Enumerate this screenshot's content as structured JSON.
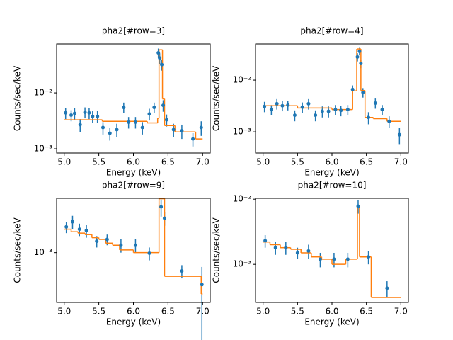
{
  "chart_data": [
    {
      "type": "errorbar",
      "title": "pha2[#row=3]",
      "x_label": "Energy (keV)",
      "y_label": "Counts/sec/keV",
      "log_y": true,
      "color": "#1f77b4",
      "model_color": "#ff7f0e",
      "xlim": [
        4.89,
        7.11
      ],
      "ylim": [
        0.00084,
        0.075
      ],
      "xticks": [
        {
          "value": 5,
          "label": "5.0"
        },
        5.5,
        {
          "value": 6,
          "label": "6.0"
        },
        6.5,
        {
          "value": 7,
          "label": "7.0"
        }
      ],
      "yticks": [
        {
          "value": 0.001,
          "label": "10⁻³"
        },
        {
          "value": 0.01,
          "label": "10⁻²"
        }
      ],
      "x": [
        5.02,
        5.1,
        5.15,
        5.23,
        5.3,
        5.36,
        5.41,
        5.48,
        5.56,
        5.66,
        5.76,
        5.86,
        5.93,
        6.03,
        6.13,
        6.23,
        6.3,
        6.36,
        6.38,
        6.41,
        6.43,
        6.48,
        6.58,
        6.7,
        6.86,
        6.98
      ],
      "values": [
        0.0044,
        0.004,
        0.0043,
        0.0027,
        0.0045,
        0.0044,
        0.0038,
        0.0038,
        0.0024,
        0.0019,
        0.0022,
        0.0055,
        0.003,
        0.003,
        0.0024,
        0.0042,
        0.0055,
        0.052,
        0.042,
        0.032,
        0.006,
        0.0033,
        0.0022,
        0.0021,
        0.0015,
        0.0024
      ],
      "errors": [
        0.001,
        0.0009,
        0.001,
        0.0007,
        0.001,
        0.001,
        0.0009,
        0.0009,
        0.0006,
        0.0005,
        0.0006,
        0.0012,
        0.0007,
        0.0007,
        0.0006,
        0.001,
        0.0012,
        0.01,
        0.009,
        0.007,
        0.0014,
        0.0008,
        0.0006,
        0.0006,
        0.0004,
        0.0007
      ],
      "model_x": [
        5.0,
        5.55,
        6.2,
        6.35,
        6.37,
        6.42,
        6.45,
        6.6,
        6.9,
        7.0
      ],
      "model_values": [
        0.0033,
        0.0031,
        0.0029,
        0.0035,
        0.059,
        0.0078,
        0.0026,
        0.002,
        0.0015
      ]
    },
    {
      "type": "errorbar",
      "title": "pha2[#row=4]",
      "x_label": "Energy (keV)",
      "y_label": "Counts/sec/keV",
      "log_y": true,
      "color": "#1f77b4",
      "model_color": "#ff7f0e",
      "xlim": [
        4.89,
        7.11
      ],
      "ylim": [
        0.00039,
        0.05
      ],
      "xticks": [
        {
          "value": 5,
          "label": "5.0"
        },
        5.5,
        {
          "value": 6,
          "label": "6.0"
        },
        6.5,
        {
          "value": 7,
          "label": "7.0"
        }
      ],
      "yticks": [
        {
          "value": 0.001,
          "label": "10⁻³"
        },
        {
          "value": 0.01,
          "label": "10⁻²"
        }
      ],
      "x": [
        5.02,
        5.12,
        5.2,
        5.28,
        5.36,
        5.46,
        5.57,
        5.66,
        5.76,
        5.86,
        5.95,
        6.05,
        6.13,
        6.23,
        6.3,
        6.37,
        6.4,
        6.42,
        6.45,
        6.53,
        6.63,
        6.73,
        6.83,
        6.98
      ],
      "values": [
        0.0031,
        0.0027,
        0.0035,
        0.0032,
        0.0033,
        0.0021,
        0.003,
        0.0035,
        0.0021,
        0.0025,
        0.0025,
        0.0027,
        0.0026,
        0.0027,
        0.0066,
        0.028,
        0.036,
        0.021,
        0.0058,
        0.0019,
        0.0036,
        0.0027,
        0.0016,
        0.00088
      ],
      "errors": [
        0.0007,
        0.0006,
        0.0008,
        0.0007,
        0.0007,
        0.0005,
        0.0007,
        0.0008,
        0.0005,
        0.0006,
        0.0006,
        0.0006,
        0.0006,
        0.0006,
        0.0013,
        0.005,
        0.006,
        0.004,
        0.0012,
        0.0005,
        0.0008,
        0.0006,
        0.0004,
        0.0003
      ],
      "model_x": [
        5.0,
        5.5,
        6.0,
        6.3,
        6.36,
        6.42,
        6.48,
        6.6,
        6.8,
        7.0
      ],
      "model_values": [
        0.0032,
        0.0029,
        0.0027,
        0.0062,
        0.04,
        0.0063,
        0.0019,
        0.0018,
        0.0016
      ]
    },
    {
      "type": "errorbar",
      "title": "pha2[#row=9]",
      "x_label": "Energy (keV)",
      "y_label": "Counts/sec/keV",
      "log_y": true,
      "color": "#1f77b4",
      "model_color": "#ff7f0e",
      "xlim": [
        4.89,
        7.11
      ],
      "ylim": [
        0.00017,
        0.0069
      ],
      "xticks": [
        {
          "value": 5,
          "label": "5.0"
        },
        5.5,
        {
          "value": 6,
          "label": "6.0"
        },
        6.5,
        {
          "value": 7,
          "label": "7.0"
        }
      ],
      "yticks": [
        {
          "value": 0.001,
          "label": "10⁻³"
        }
      ],
      "x": [
        5.03,
        5.12,
        5.22,
        5.32,
        5.47,
        5.62,
        5.82,
        6.03,
        6.23,
        6.4,
        6.45,
        6.7,
        6.99
      ],
      "values": [
        0.0025,
        0.003,
        0.0023,
        0.0022,
        0.0015,
        0.0016,
        0.0013,
        0.0013,
        0.00098,
        0.0051,
        0.0034,
        0.00052,
        0.00032
      ],
      "errors": [
        0.0005,
        0.0007,
        0.0005,
        0.0005,
        0.0003,
        0.0003,
        0.0003,
        0.0003,
        0.00022,
        0.0015,
        0.0008,
        0.00012,
        0.00028
      ],
      "model_x": [
        5.0,
        5.1,
        5.2,
        5.3,
        5.4,
        5.5,
        5.6,
        5.7,
        5.8,
        6.0,
        6.2,
        6.37,
        6.45,
        6.98,
        7.0
      ],
      "model_values": [
        0.0023,
        0.0021,
        0.002,
        0.0019,
        0.0017,
        0.0016,
        0.0014,
        0.0013,
        0.0011,
        0.001,
        0.001,
        0.0068,
        0.00043,
        0.00023
      ]
    },
    {
      "type": "errorbar",
      "title": "pha2[#row=10]",
      "x_label": "Energy (keV)",
      "y_label": "Counts/sec/keV",
      "log_y": true,
      "color": "#1f77b4",
      "model_color": "#ff7f0e",
      "xlim": [
        4.89,
        7.11
      ],
      "ylim": [
        0.00026,
        0.0103
      ],
      "xticks": [
        {
          "value": 5,
          "label": "5.0"
        },
        5.5,
        {
          "value": 6,
          "label": "6.0"
        },
        6.5,
        {
          "value": 7,
          "label": "7.0"
        }
      ],
      "yticks": [
        {
          "value": 0.001,
          "label": "10⁻³"
        },
        {
          "value": 0.01,
          "label": "10⁻²"
        }
      ],
      "x": [
        5.03,
        5.18,
        5.33,
        5.5,
        5.66,
        5.83,
        6.03,
        6.23,
        6.38,
        6.53,
        6.8
      ],
      "values": [
        0.0023,
        0.0018,
        0.0018,
        0.0015,
        0.0016,
        0.0012,
        0.0012,
        0.0012,
        0.0078,
        0.0013,
        0.00043
      ],
      "errors": [
        0.0005,
        0.0004,
        0.0004,
        0.0003,
        0.0004,
        0.0003,
        0.0003,
        0.0003,
        0.0018,
        0.0003,
        0.00012
      ],
      "model_x": [
        5.0,
        5.1,
        5.25,
        5.4,
        5.55,
        5.7,
        5.85,
        6.0,
        6.2,
        6.37,
        6.4,
        6.57,
        7.0
      ],
      "model_values": [
        0.0022,
        0.002,
        0.0018,
        0.0017,
        0.0015,
        0.0013,
        0.0012,
        0.001,
        0.0012,
        0.008,
        0.0013,
        0.00031
      ]
    }
  ]
}
